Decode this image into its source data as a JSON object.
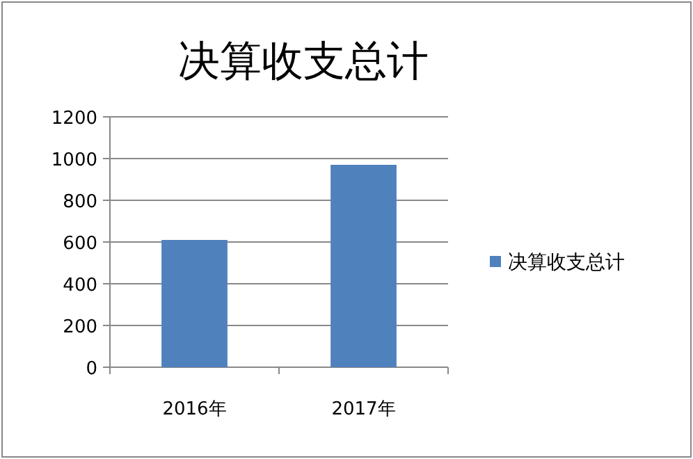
{
  "chart_data": {
    "type": "bar",
    "title": "决算收支总计",
    "categories": [
      "2016年",
      "2017年"
    ],
    "series": [
      {
        "name": "决算收支总计",
        "color": "#4f81bd",
        "values": [
          610,
          970
        ]
      }
    ],
    "ylim": [
      0,
      1200
    ],
    "yticks": [
      0,
      200,
      400,
      600,
      800,
      1000,
      1200
    ],
    "grid": "y",
    "legend": "right"
  }
}
